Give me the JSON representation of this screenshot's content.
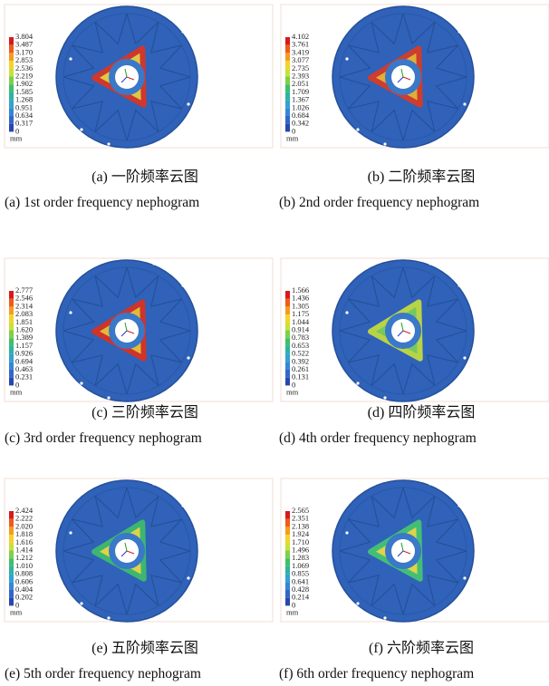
{
  "panels": [
    {
      "legend": [
        "3.804",
        "3.487",
        "3.170",
        "2.853",
        "2.536",
        "2.219",
        "1.902",
        "1.585",
        "1.268",
        "0.951",
        "0.634",
        "0.317",
        "0"
      ],
      "unit": "mm",
      "caption_cn": "(a) 一阶频率云图",
      "caption_en": "(a) 1st order frequency nephogram"
    },
    {
      "legend": [
        "4.102",
        "3.761",
        "3.419",
        "3.077",
        "2.735",
        "2.393",
        "2.051",
        "1.709",
        "1.367",
        "1.026",
        "0.684",
        "0.342",
        "0"
      ],
      "unit": "mm",
      "caption_cn": "(b) 二阶频率云图",
      "caption_en": "(b) 2nd order frequency nephogram"
    },
    {
      "legend": [
        "2.777",
        "2.546",
        "2.314",
        "2.083",
        "1.851",
        "1.620",
        "1.389",
        "1.157",
        "0.926",
        "0.694",
        "0.463",
        "0.231",
        "0"
      ],
      "unit": "mm",
      "caption_cn": "(c) 三阶频率云图",
      "caption_en": "(c) 3rd order frequency nephogram"
    },
    {
      "legend": [
        "1.566",
        "1.436",
        "1.305",
        "1.175",
        "1.044",
        "0.914",
        "0.783",
        "0.653",
        "0.522",
        "0.392",
        "0.261",
        "0.131",
        "0"
      ],
      "unit": "mm",
      "caption_cn": "(d) 四阶频率云图",
      "caption_en": "(d) 4th order frequency nephogram"
    },
    {
      "legend": [
        "2.424",
        "2.222",
        "2.020",
        "1.818",
        "1.616",
        "1.414",
        "1.212",
        "1.010",
        "0.808",
        "0.606",
        "0.404",
        "0.202",
        "0"
      ],
      "unit": "mm",
      "caption_cn": "(e) 五阶频率云图",
      "caption_en": "(e) 5th order frequency nephogram"
    },
    {
      "legend": [
        "2.565",
        "2.351",
        "2.138",
        "1.924",
        "1.710",
        "1.496",
        "1.283",
        "1.069",
        "0.855",
        "0.641",
        "0.428",
        "0.214",
        "0"
      ],
      "unit": "mm",
      "caption_cn": "(f) 六阶频率云图",
      "caption_en": "(f) 6th order frequency nephogram"
    }
  ]
}
